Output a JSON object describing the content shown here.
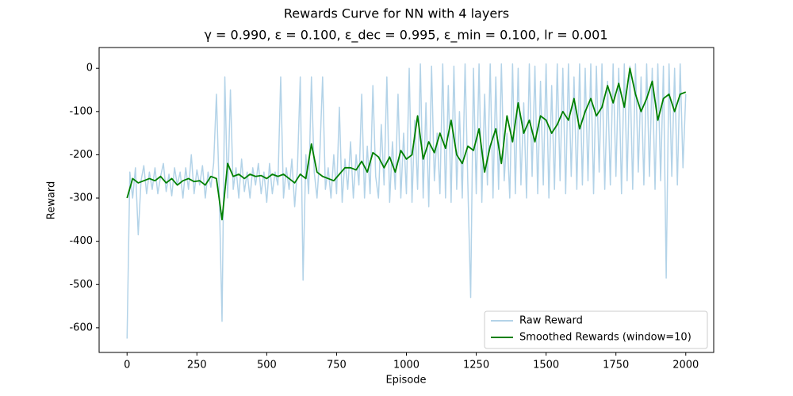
{
  "chart_data": {
    "type": "line",
    "title": "Rewards Curve for NN with 4 layers",
    "subtitle": "γ = 0.990, ε = 0.100, ε_dec = 0.995, ε_min = 0.100, lr = 0.001",
    "x_label": "Episode",
    "y_label": "Reward",
    "xlim": [
      -100,
      2100
    ],
    "ylim": [
      -657,
      48
    ],
    "xticks": [
      0,
      250,
      500,
      750,
      1000,
      1250,
      1500,
      1750,
      2000
    ],
    "yticks": [
      -600,
      -500,
      -400,
      -300,
      -200,
      -100,
      0
    ],
    "grid": false,
    "legend": "lower right",
    "series": [
      {
        "name": "Raw Reward",
        "color": "#b3d3e8",
        "x": [
          0,
          10,
          20,
          30,
          40,
          50,
          60,
          70,
          80,
          90,
          100,
          110,
          120,
          130,
          140,
          150,
          160,
          170,
          180,
          190,
          200,
          210,
          220,
          230,
          240,
          250,
          260,
          270,
          280,
          290,
          300,
          310,
          320,
          330,
          340,
          350,
          360,
          370,
          380,
          390,
          400,
          410,
          420,
          430,
          440,
          450,
          460,
          470,
          480,
          490,
          500,
          510,
          520,
          530,
          540,
          550,
          560,
          570,
          580,
          590,
          600,
          610,
          620,
          630,
          640,
          650,
          660,
          670,
          680,
          690,
          700,
          710,
          720,
          730,
          740,
          750,
          760,
          770,
          780,
          790,
          800,
          810,
          820,
          830,
          840,
          850,
          860,
          870,
          880,
          890,
          900,
          910,
          920,
          930,
          940,
          950,
          960,
          970,
          980,
          990,
          1000,
          1010,
          1020,
          1030,
          1040,
          1050,
          1060,
          1070,
          1080,
          1090,
          1100,
          1110,
          1120,
          1130,
          1140,
          1150,
          1160,
          1170,
          1180,
          1190,
          1200,
          1210,
          1220,
          1230,
          1240,
          1250,
          1260,
          1270,
          1280,
          1290,
          1300,
          1310,
          1320,
          1330,
          1340,
          1350,
          1360,
          1370,
          1380,
          1390,
          1400,
          1410,
          1420,
          1430,
          1440,
          1450,
          1460,
          1470,
          1480,
          1490,
          1500,
          1510,
          1520,
          1530,
          1540,
          1550,
          1560,
          1570,
          1580,
          1590,
          1600,
          1610,
          1620,
          1630,
          1640,
          1650,
          1660,
          1670,
          1680,
          1690,
          1700,
          1710,
          1720,
          1730,
          1740,
          1750,
          1760,
          1770,
          1780,
          1790,
          1800,
          1810,
          1820,
          1830,
          1840,
          1850,
          1860,
          1870,
          1880,
          1890,
          1900,
          1910,
          1920,
          1930,
          1940,
          1950,
          1960,
          1970,
          1980,
          1990,
          2000
        ],
        "values": [
          -625,
          -240,
          -300,
          -230,
          -385,
          -260,
          -225,
          -290,
          -240,
          -280,
          -230,
          -290,
          -250,
          -220,
          -285,
          -245,
          -295,
          -230,
          -270,
          -240,
          -300,
          -230,
          -280,
          -200,
          -290,
          -235,
          -270,
          -225,
          -300,
          -240,
          -275,
          -220,
          -60,
          -290,
          -585,
          -20,
          -300,
          -50,
          -280,
          -230,
          -300,
          -210,
          -285,
          -240,
          -300,
          -230,
          -270,
          -220,
          -290,
          -240,
          -310,
          -220,
          -290,
          -240,
          -270,
          -20,
          -300,
          -230,
          -280,
          -210,
          -320,
          -230,
          -20,
          -490,
          -200,
          -290,
          -20,
          -240,
          -300,
          -200,
          -20,
          -280,
          -230,
          -300,
          -200,
          -290,
          -90,
          -310,
          -210,
          -280,
          -170,
          -300,
          -200,
          -270,
          -60,
          -300,
          -180,
          -290,
          -40,
          -250,
          -300,
          -130,
          -270,
          -20,
          -310,
          -170,
          -280,
          -60,
          -300,
          -150,
          -290,
          0,
          -310,
          -120,
          -280,
          10,
          -300,
          -80,
          -320,
          5,
          -260,
          -150,
          -290,
          10,
          -300,
          -40,
          -310,
          5,
          -280,
          -100,
          -300,
          10,
          -270,
          -530,
          0,
          -290,
          10,
          -310,
          -60,
          -270,
          10,
          -300,
          -20,
          -280,
          10,
          -260,
          -150,
          -300,
          10,
          -290,
          0,
          -270,
          -80,
          -300,
          10,
          -250,
          5,
          -290,
          -30,
          -270,
          10,
          -300,
          -40,
          -280,
          10,
          -260,
          0,
          -290,
          10,
          -250,
          -20,
          -280,
          10,
          -270,
          0,
          -260,
          10,
          -290,
          5,
          -240,
          10,
          -280,
          -30,
          -270,
          10,
          -250,
          0,
          -290,
          10,
          -260,
          5,
          -280,
          10,
          -240,
          -20,
          -270,
          10,
          -250,
          0,
          -280,
          10,
          -260,
          5,
          -485,
          10,
          -250,
          0,
          -270,
          10,
          -230,
          -60
        ]
      },
      {
        "name": "Smoothed Rewards (window=10)",
        "color": "#008000",
        "x": [
          0,
          20,
          40,
          60,
          80,
          100,
          120,
          140,
          160,
          180,
          200,
          220,
          240,
          260,
          280,
          300,
          320,
          340,
          360,
          380,
          400,
          420,
          440,
          460,
          480,
          500,
          520,
          540,
          560,
          580,
          600,
          620,
          640,
          660,
          680,
          700,
          720,
          740,
          760,
          780,
          800,
          820,
          840,
          860,
          880,
          900,
          920,
          940,
          960,
          980,
          1000,
          1020,
          1040,
          1060,
          1080,
          1100,
          1120,
          1140,
          1160,
          1180,
          1200,
          1220,
          1240,
          1260,
          1280,
          1300,
          1320,
          1340,
          1360,
          1380,
          1400,
          1420,
          1440,
          1460,
          1480,
          1500,
          1520,
          1540,
          1560,
          1580,
          1600,
          1620,
          1640,
          1660,
          1680,
          1700,
          1720,
          1740,
          1760,
          1780,
          1800,
          1820,
          1840,
          1860,
          1880,
          1900,
          1920,
          1940,
          1960,
          1980,
          2000
        ],
        "values": [
          -300,
          -255,
          -265,
          -260,
          -255,
          -260,
          -250,
          -265,
          -255,
          -270,
          -260,
          -255,
          -262,
          -260,
          -270,
          -250,
          -255,
          -350,
          -220,
          -250,
          -245,
          -255,
          -245,
          -250,
          -248,
          -255,
          -245,
          -250,
          -245,
          -255,
          -265,
          -245,
          -255,
          -175,
          -240,
          -250,
          -255,
          -260,
          -245,
          -230,
          -230,
          -235,
          -215,
          -240,
          -195,
          -205,
          -230,
          -205,
          -240,
          -190,
          -210,
          -200,
          -110,
          -210,
          -170,
          -195,
          -150,
          -185,
          -120,
          -200,
          -220,
          -180,
          -190,
          -140,
          -240,
          -180,
          -140,
          -220,
          -110,
          -170,
          -80,
          -150,
          -120,
          -170,
          -110,
          -120,
          -150,
          -130,
          -100,
          -120,
          -70,
          -140,
          -100,
          -70,
          -110,
          -90,
          -40,
          -80,
          -35,
          -90,
          0,
          -60,
          -100,
          -70,
          -30,
          -120,
          -70,
          -60,
          -100,
          -60,
          -55
        ]
      }
    ]
  }
}
